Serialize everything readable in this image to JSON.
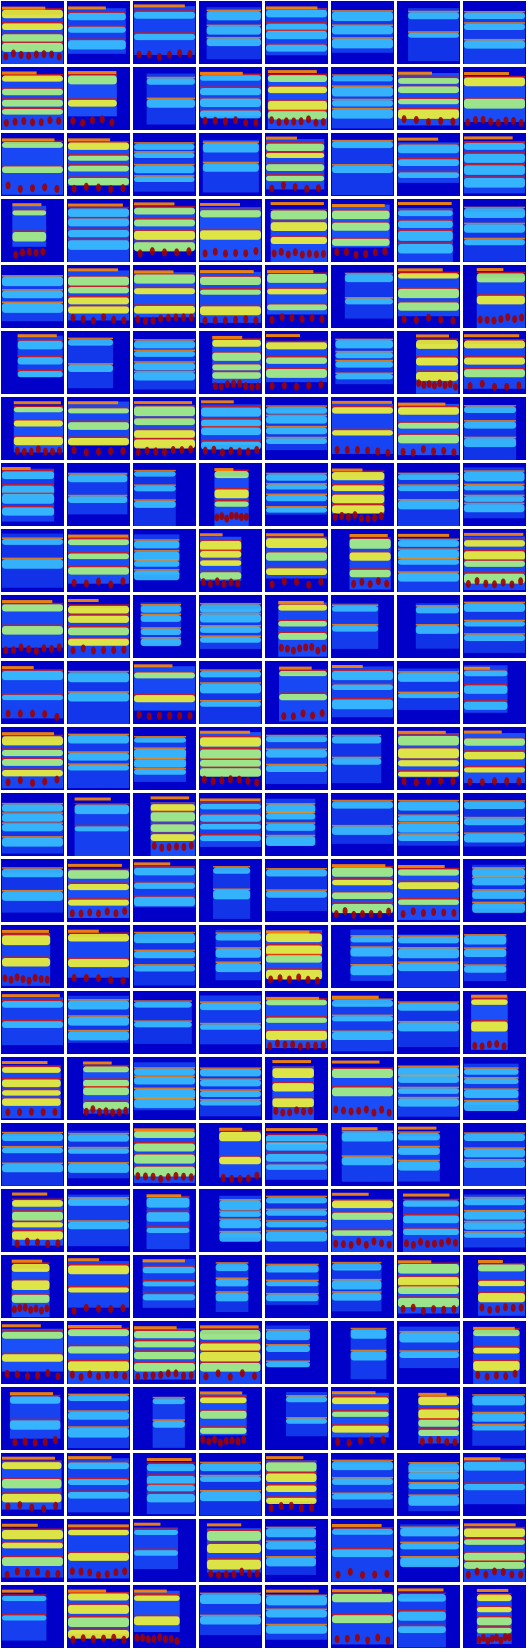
{
  "figure": {
    "kind": "grid of heatmap sample images",
    "rows": 25,
    "columns": 8,
    "colormap": [
      "#0000c8",
      "#1e5aff",
      "#3cc8ff",
      "#b4ff78",
      "#ffff28",
      "#ff8c00",
      "#e61400",
      "#a00000"
    ],
    "background_color": "#ffffff"
  }
}
